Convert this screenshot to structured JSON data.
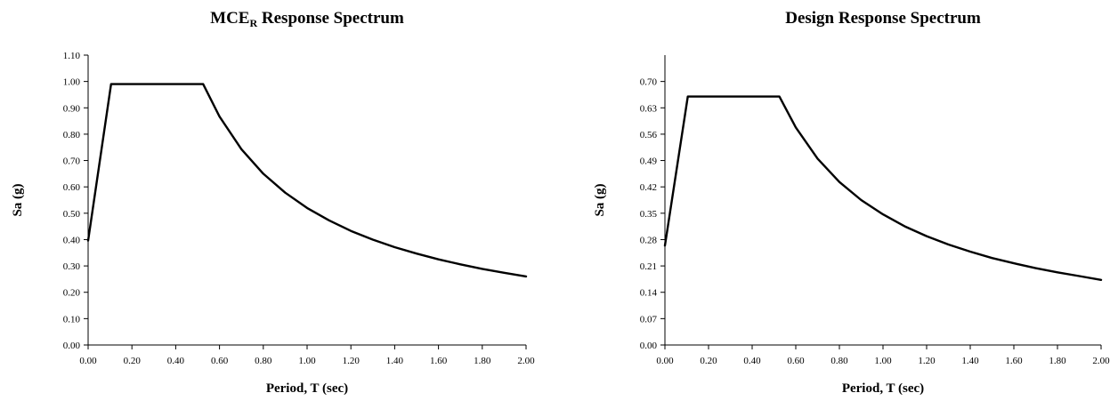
{
  "chart_data": [
    {
      "type": "line",
      "title_main": "MCE",
      "title_subscript": "R",
      "title_rest": " Response Spectrum",
      "xlabel": "Period, T (sec)",
      "ylabel": "Sa (g)",
      "xlim": [
        0,
        2
      ],
      "ylim": [
        0,
        1.1
      ],
      "x_ticks": [
        "0.00",
        "0.20",
        "0.40",
        "0.60",
        "0.80",
        "1.00",
        "1.20",
        "1.40",
        "1.60",
        "1.80",
        "2.00"
      ],
      "y_ticks": [
        "0.00",
        "0.10",
        "0.20",
        "0.30",
        "0.40",
        "0.50",
        "0.60",
        "0.70",
        "0.80",
        "0.90",
        "1.00",
        "1.10"
      ],
      "grid": false,
      "legend": "none",
      "series": [
        {
          "x": [
            0.0,
            0.105,
            0.525,
            0.6,
            0.7,
            0.8,
            0.9,
            1.0,
            1.1,
            1.2,
            1.3,
            1.4,
            1.5,
            1.6,
            1.7,
            1.8,
            1.9,
            2.0
          ],
          "y": [
            0.396,
            0.99,
            0.99,
            0.867,
            0.743,
            0.65,
            0.578,
            0.52,
            0.473,
            0.433,
            0.4,
            0.371,
            0.347,
            0.325,
            0.306,
            0.289,
            0.274,
            0.26
          ]
        }
      ]
    },
    {
      "type": "line",
      "title_main": "Design Response Spectrum",
      "title_subscript": "",
      "title_rest": "",
      "xlabel": "Period, T (sec)",
      "ylabel": "Sa (g)",
      "xlim": [
        0,
        2
      ],
      "ylim": [
        0,
        0.77
      ],
      "x_ticks": [
        "0.00",
        "0.20",
        "0.40",
        "0.60",
        "0.80",
        "1.00",
        "1.20",
        "1.40",
        "1.60",
        "1.80",
        "2.00"
      ],
      "y_ticks": [
        "0.00",
        "0.07",
        "0.14",
        "0.21",
        "0.28",
        "0.35",
        "0.42",
        "0.49",
        "0.56",
        "0.63",
        "0.70"
      ],
      "grid": false,
      "legend": "none",
      "series": [
        {
          "x": [
            0.0,
            0.105,
            0.525,
            0.6,
            0.7,
            0.8,
            0.9,
            1.0,
            1.1,
            1.2,
            1.3,
            1.4,
            1.5,
            1.6,
            1.7,
            1.8,
            1.9,
            2.0
          ],
          "y": [
            0.264,
            0.66,
            0.66,
            0.578,
            0.495,
            0.433,
            0.385,
            0.347,
            0.315,
            0.289,
            0.267,
            0.248,
            0.231,
            0.217,
            0.204,
            0.193,
            0.183,
            0.173
          ]
        }
      ]
    }
  ]
}
